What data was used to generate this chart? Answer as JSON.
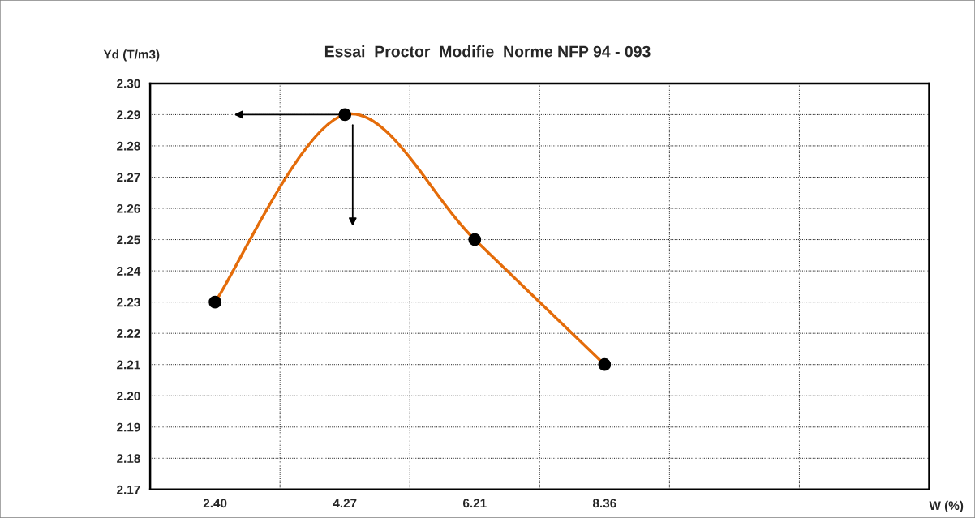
{
  "chart_data": {
    "type": "line",
    "title": "Essai  Proctor  Modifie  Norme NFP 94 - 093",
    "xlabel": "W (%)",
    "ylabel": "Yd (T/m3)",
    "categories": [
      "2.40",
      "4.27",
      "6.21",
      "8.36",
      null,
      null
    ],
    "series": [
      {
        "color": "#e46c0a",
        "values": [
          2.23,
          2.29,
          2.25,
          2.21,
          null,
          null
        ]
      }
    ],
    "ylim": [
      2.17,
      2.3
    ],
    "yticks": [
      {
        "value": 2.17,
        "label": "2.17"
      },
      {
        "value": 2.18,
        "label": "2.18"
      },
      {
        "value": 2.19,
        "label": "2.19"
      },
      {
        "value": 2.2,
        "label": "2.20"
      },
      {
        "value": 2.21,
        "label": "2.21"
      },
      {
        "value": 2.22,
        "label": "2.22"
      },
      {
        "value": 2.23,
        "label": "2.23"
      },
      {
        "value": 2.24,
        "label": "2.24"
      },
      {
        "value": 2.25,
        "label": "2.25"
      },
      {
        "value": 2.26,
        "label": "2.26"
      },
      {
        "value": 2.27,
        "label": "2.27"
      },
      {
        "value": 2.28,
        "label": "2.28"
      },
      {
        "value": 2.29,
        "label": "2.29"
      },
      {
        "value": 2.3,
        "label": "2.30"
      }
    ],
    "grid": true,
    "marker": "circle",
    "line_style": "solid"
  }
}
